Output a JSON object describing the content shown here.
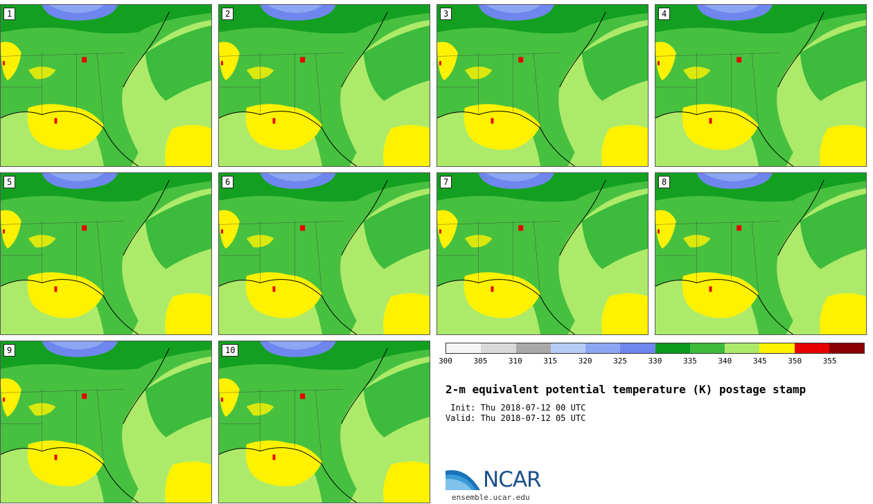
{
  "stamps": [
    {
      "label": "1"
    },
    {
      "label": "2"
    },
    {
      "label": "3"
    },
    {
      "label": "4"
    },
    {
      "label": "5"
    },
    {
      "label": "6"
    },
    {
      "label": "7"
    },
    {
      "label": "8"
    },
    {
      "label": "9"
    },
    {
      "label": "10"
    }
  ],
  "colorbar": {
    "colors": [
      "#f5f5f5",
      "#d9d9d9",
      "#a9a9a9",
      "#b7cdf5",
      "#8da6f2",
      "#6f86ef",
      "#0a9a1c",
      "#3cbb3c",
      "#adea6a",
      "#fff200",
      "#e60000",
      "#8b0000"
    ],
    "ticks": [
      "300",
      "305",
      "310",
      "315",
      "320",
      "325",
      "330",
      "335",
      "340",
      "345",
      "350",
      "355"
    ]
  },
  "title": "2-m equivalent potential temperature (K) postage stamp",
  "init_text": " Init: Thu 2018-07-12 00 UTC",
  "valid_text": "Valid: Thu 2018-07-12 05 UTC",
  "logo": {
    "text": "NCAR",
    "url": "ensemble.ucar.edu"
  }
}
